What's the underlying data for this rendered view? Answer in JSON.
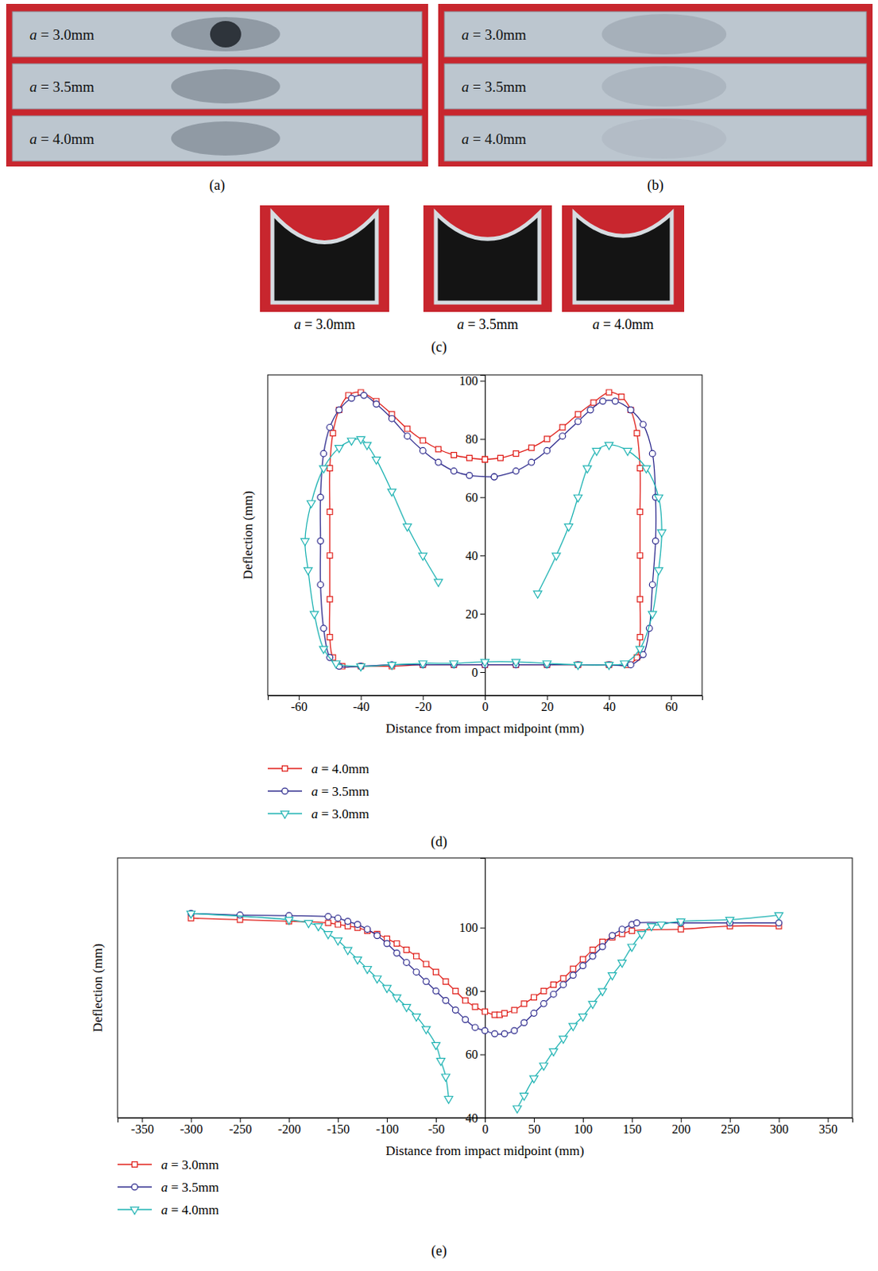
{
  "photos": [
    {
      "title": "(a)",
      "specimens": [
        "a = 3.0mm",
        "a = 3.5mm",
        "a = 4.0mm"
      ]
    },
    {
      "title": "(b)",
      "specimens": [
        "a = 3.0mm",
        "a = 3.5mm",
        "a = 4.0mm"
      ]
    },
    {
      "title": "(c)",
      "specimens": [
        "a = 3.0mm",
        "a = 3.5mm",
        "a = 4.0mm"
      ]
    }
  ],
  "chart_data": [
    {
      "type": "line",
      "title": "(d)",
      "x_label": "Distance from impact midpoint (mm)",
      "y_label": "Deflection (mm)",
      "xlim": [
        -70,
        70
      ],
      "ylim": [
        -8,
        102
      ],
      "xticks": [
        -60,
        -40,
        -20,
        0,
        20,
        40,
        60
      ],
      "yticks": [
        0,
        20,
        40,
        60,
        80,
        100
      ],
      "legend": "below",
      "series": [
        {
          "name": "a = 4.0mm",
          "color": "#e0201b",
          "marker": "square",
          "line_style": "solid",
          "x": [
            0,
            -5,
            -10,
            -15,
            -20,
            -25,
            -30,
            -35,
            -40,
            -44,
            -47,
            -49,
            -50,
            -50,
            -50,
            -50,
            -50,
            -49,
            -46,
            -40,
            -30,
            -20,
            -10,
            0,
            10,
            20,
            30,
            40,
            46,
            49,
            50,
            50,
            50,
            50,
            50,
            49,
            47,
            44,
            40,
            35,
            30,
            25,
            20,
            15,
            10,
            5,
            0
          ],
          "values": [
            73,
            73.5,
            74.5,
            76.5,
            79.5,
            83.5,
            88.5,
            93,
            96,
            95,
            90,
            82,
            70,
            55,
            40,
            25,
            12,
            5,
            2,
            2,
            2,
            2.5,
            2.5,
            2.5,
            2.5,
            2.5,
            2.5,
            2.5,
            2.5,
            5,
            12,
            25,
            40,
            55,
            70,
            82,
            90,
            94.5,
            96,
            92.5,
            88.5,
            84,
            80,
            77,
            75,
            73.5,
            73
          ]
        },
        {
          "name": "a = 3.5mm",
          "color": "#2f2c8e",
          "marker": "circle",
          "line_style": "solid",
          "x": [
            3,
            -5,
            -10,
            -15,
            -20,
            -25,
            -30,
            -35,
            -39,
            -43,
            -47,
            -50,
            -52,
            -53,
            -53,
            -53,
            -52,
            -50,
            -47,
            -40,
            -30,
            -20,
            -10,
            0,
            10,
            20,
            30,
            40,
            47,
            51,
            53,
            54,
            55,
            55,
            54,
            51,
            47,
            42,
            38,
            34,
            30,
            25,
            20,
            15,
            10,
            3
          ],
          "values": [
            67,
            67.5,
            69,
            72,
            76,
            81,
            87,
            92,
            95,
            94,
            90,
            84,
            75,
            60,
            45,
            30,
            15,
            5,
            2,
            2,
            2.5,
            2.5,
            2.5,
            2.5,
            2.5,
            2.5,
            2.5,
            2.5,
            2.5,
            6,
            15,
            30,
            45,
            60,
            75,
            85,
            90,
            93,
            93,
            90,
            86,
            81,
            76,
            72,
            69,
            67
          ]
        },
        {
          "name": "a = 3.0mm",
          "color": "#1fb3b3",
          "marker": "triangle-down",
          "line_style": "solid",
          "x": [
            -15,
            -20,
            -25,
            -30,
            -35,
            -38,
            -40,
            -43,
            -47,
            -52,
            -56,
            -58,
            -57,
            -55,
            -52,
            -48,
            -40,
            -30,
            -20,
            -10,
            0,
            10,
            20,
            30,
            40,
            45,
            50,
            54,
            56,
            57,
            56,
            52,
            46,
            40,
            36,
            33,
            30,
            27,
            23,
            17
          ],
          "values": [
            31,
            40,
            50,
            62,
            73,
            78,
            80,
            79.5,
            77,
            70,
            58,
            45,
            35,
            20,
            8,
            3,
            2,
            2.5,
            3,
            3,
            3.5,
            3.5,
            3,
            2.5,
            2.5,
            3,
            8,
            20,
            35,
            48,
            60,
            70,
            76,
            78,
            76,
            70,
            60,
            50,
            40,
            27
          ]
        }
      ]
    },
    {
      "type": "line",
      "title": "(e)",
      "x_label": "Distance from impact midpoint (mm)",
      "y_label": "Deflection (mm)",
      "xlim": [
        -375,
        375
      ],
      "ylim": [
        40,
        122
      ],
      "xticks": [
        -350,
        -300,
        -250,
        -200,
        -150,
        -100,
        -50,
        0,
        50,
        100,
        150,
        200,
        250,
        300,
        350
      ],
      "yticks": [
        40,
        60,
        80,
        100
      ],
      "legend": "below",
      "series": [
        {
          "name": "a = 3.0mm",
          "color": "#e0201b",
          "marker": "square",
          "line_style": "solid",
          "x": [
            -300,
            -250,
            -200,
            -160,
            -150,
            -140,
            -130,
            -120,
            -110,
            -100,
            -90,
            -80,
            -70,
            -60,
            -50,
            -40,
            -30,
            -20,
            -10,
            0,
            10,
            15,
            20,
            30,
            40,
            50,
            60,
            70,
            80,
            90,
            100,
            110,
            120,
            130,
            140,
            150,
            200,
            250,
            300
          ],
          "values": [
            103,
            102.5,
            102,
            101.5,
            101,
            100.5,
            100,
            99,
            98,
            96.5,
            95,
            93,
            91,
            88.5,
            86,
            83,
            80,
            77,
            75,
            73.5,
            72.5,
            72.5,
            73,
            74,
            76,
            78,
            80,
            82,
            84,
            87,
            90,
            93,
            95.5,
            97,
            98,
            99,
            99.5,
            100.5,
            100.5
          ]
        },
        {
          "name": "a = 3.5mm",
          "color": "#2f2c8e",
          "marker": "circle",
          "line_style": "solid",
          "x": [
            -300,
            -250,
            -200,
            -160,
            -150,
            -140,
            -130,
            -120,
            -110,
            -100,
            -90,
            -80,
            -70,
            -60,
            -50,
            -40,
            -30,
            -20,
            -10,
            0,
            10,
            20,
            30,
            40,
            50,
            60,
            70,
            80,
            90,
            100,
            110,
            120,
            130,
            140,
            150,
            155,
            200,
            250,
            300
          ],
          "values": [
            104.5,
            104,
            103.8,
            103.5,
            103,
            102,
            101,
            99.5,
            97.5,
            95,
            92,
            89,
            86,
            83,
            80,
            77,
            74,
            71,
            68.5,
            67.5,
            66.5,
            66.5,
            67.5,
            70,
            73,
            76,
            79,
            82,
            85,
            88,
            91,
            94,
            97.5,
            99.5,
            101,
            101.5,
            101.5,
            101.5,
            101.5
          ]
        },
        {
          "name": "a = 4.0mm",
          "color": "#1fb3b3",
          "marker": "triangle-down",
          "line_style": "solid",
          "x": [
            -300,
            -200,
            -180,
            -170,
            -160,
            -150,
            -140,
            -130,
            -120,
            -110,
            -100,
            -90,
            -80,
            -70,
            -60,
            -50,
            -45,
            -40,
            -37,
            0,
            33,
            40,
            50,
            60,
            70,
            80,
            90,
            100,
            110,
            120,
            130,
            140,
            150,
            160,
            170,
            180,
            200,
            250,
            300
          ],
          "values": [
            104.5,
            102.5,
            101.5,
            100.5,
            98,
            96,
            93,
            90,
            87,
            84,
            81,
            78,
            75,
            72,
            68,
            63,
            58,
            53,
            46,
            null,
            43,
            47,
            52.5,
            56.5,
            61,
            65,
            69,
            72,
            76,
            80,
            85,
            89,
            94,
            98,
            100.5,
            101,
            102,
            102.5,
            104
          ]
        }
      ]
    }
  ]
}
